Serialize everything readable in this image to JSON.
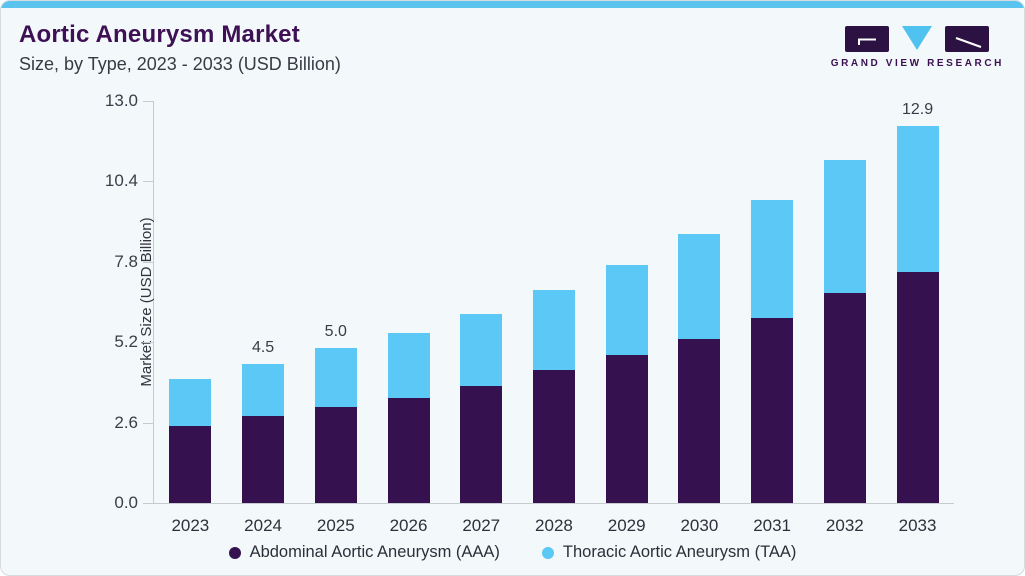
{
  "header": {
    "title": "Aortic Aneurysm Market",
    "subtitle": "Size, by Type, 2023 - 2033 (USD Billion)",
    "logo_text": "GRAND VIEW RESEARCH"
  },
  "colors": {
    "accent_strip": "#5ac3ee",
    "title_purple": "#3e1054",
    "aaa_purple": "#361150",
    "taa_blue": "#5bc8f5",
    "axis_gray": "#c6cbd0",
    "card_background": "#f3f8fb"
  },
  "chart_data": {
    "type": "bar",
    "stacked": true,
    "title": "Aortic Aneurysm Market Size, by Type, 2023 - 2033 (USD Billion)",
    "categories": [
      "2023",
      "2024",
      "2025",
      "2026",
      "2027",
      "2028",
      "2029",
      "2030",
      "2031",
      "2032",
      "2033"
    ],
    "series": [
      {
        "name": "Abdominal Aortic Aneurysm (AAA)",
        "color": "#361150",
        "values": [
          2.5,
          2.8,
          3.1,
          3.4,
          3.8,
          4.3,
          4.8,
          5.3,
          6.0,
          6.8,
          7.9
        ]
      },
      {
        "name": "Thoracic Aortic Aneurysm (TAA)",
        "color": "#5bc8f5",
        "values": [
          1.5,
          1.7,
          1.9,
          2.1,
          2.3,
          2.6,
          2.9,
          3.4,
          3.8,
          4.3,
          5.0
        ]
      }
    ],
    "totals": [
      4.0,
      4.5,
      5.0,
      5.5,
      6.1,
      6.9,
      7.7,
      8.7,
      9.8,
      11.1,
      12.9
    ],
    "bar_labels": [
      "",
      "4.5",
      "5.0",
      "",
      "",
      "",
      "",
      "",
      "",
      "",
      "12.9"
    ],
    "xlabel": "",
    "ylabel": "Market Size (USD Billion)",
    "yticks": [
      "0.0",
      "2.6",
      "5.2",
      "7.8",
      "10.4",
      "13.0"
    ],
    "ylim": [
      0,
      13.0
    ],
    "grid": false,
    "legend_position": "bottom"
  }
}
